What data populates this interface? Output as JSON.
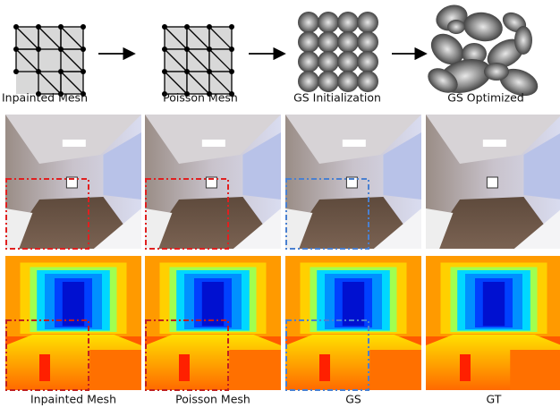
{
  "top_labels": [
    "Inpainted Mesh",
    "Poisson Mesh",
    "GS Initialization",
    "GS Optimized"
  ],
  "bottom_labels": [
    "Inpainted Mesh",
    "Poisson Mesh",
    "GS",
    "GT"
  ]
}
